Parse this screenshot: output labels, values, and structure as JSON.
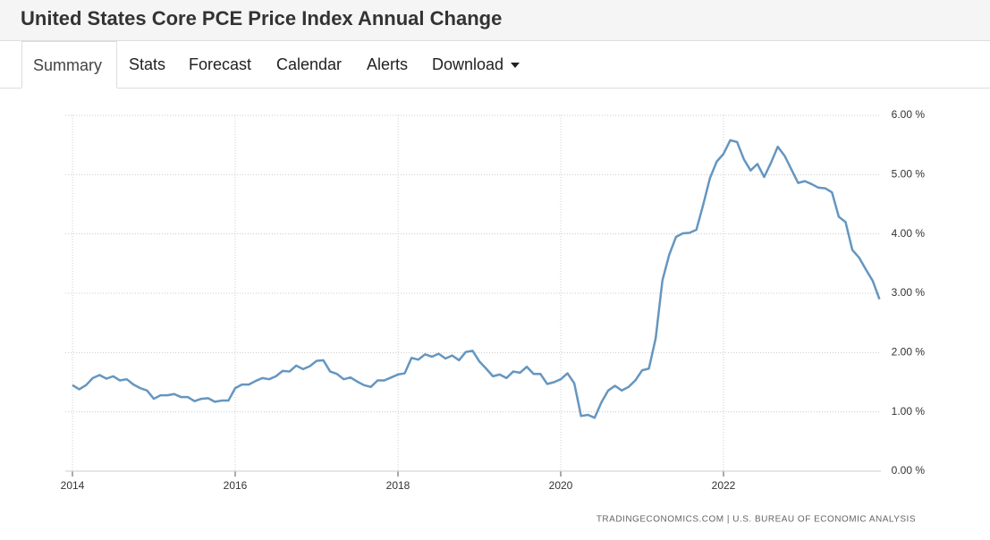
{
  "header": {
    "title": "United States Core PCE Price Index Annual Change"
  },
  "tabs": [
    "Summary",
    "Stats",
    "Forecast",
    "Calendar",
    "Alerts",
    "Download"
  ],
  "chart_data": {
    "type": "line",
    "source": "TRADINGECONOMICS.COM | U.S. BUREAU OF ECONOMIC ANALYSIS",
    "categories": [
      "2014",
      null,
      null,
      null,
      null,
      null,
      null,
      null,
      null,
      null,
      null,
      null,
      null,
      null,
      null,
      null,
      null,
      null,
      null,
      null,
      null,
      null,
      null,
      null,
      "2016",
      null,
      null,
      null,
      null,
      null,
      null,
      null,
      null,
      null,
      null,
      null,
      null,
      null,
      null,
      null,
      null,
      null,
      null,
      null,
      null,
      null,
      null,
      null,
      "2018",
      null,
      null,
      null,
      null,
      null,
      null,
      null,
      null,
      null,
      null,
      null,
      null,
      null,
      null,
      null,
      null,
      null,
      null,
      null,
      null,
      null,
      null,
      null,
      "2020",
      null,
      null,
      null,
      null,
      null,
      null,
      null,
      null,
      null,
      null,
      null,
      null,
      null,
      null,
      null,
      null,
      null,
      null,
      null,
      null,
      null,
      null,
      null,
      "2022",
      null,
      null,
      null,
      null,
      null,
      null,
      null,
      null,
      null,
      null,
      null,
      null,
      null,
      null,
      null,
      null,
      null,
      null,
      null,
      null,
      null,
      null,
      null
    ],
    "series": [
      {
        "name": "Core PCE Price Index Annual Change",
        "color": "#6596c0",
        "values": [
          1.45,
          1.38,
          1.45,
          1.57,
          1.62,
          1.56,
          1.6,
          1.53,
          1.55,
          1.46,
          1.4,
          1.36,
          1.22,
          1.28,
          1.28,
          1.3,
          1.25,
          1.25,
          1.18,
          1.22,
          1.23,
          1.17,
          1.19,
          1.19,
          1.4,
          1.46,
          1.46,
          1.52,
          1.57,
          1.55,
          1.6,
          1.69,
          1.68,
          1.78,
          1.72,
          1.77,
          1.86,
          1.87,
          1.68,
          1.64,
          1.55,
          1.58,
          1.51,
          1.45,
          1.42,
          1.53,
          1.53,
          1.58,
          1.63,
          1.65,
          1.91,
          1.88,
          1.97,
          1.93,
          1.98,
          1.9,
          1.95,
          1.87,
          2.01,
          2.03,
          1.85,
          1.73,
          1.6,
          1.63,
          1.57,
          1.68,
          1.66,
          1.76,
          1.64,
          1.64,
          1.47,
          1.5,
          1.55,
          1.65,
          1.48,
          0.93,
          0.95,
          0.9,
          1.16,
          1.36,
          1.44,
          1.36,
          1.42,
          1.53,
          1.7,
          1.73,
          2.24,
          3.22,
          3.65,
          3.95,
          4.01,
          4.02,
          4.07,
          4.49,
          4.94,
          5.22,
          5.35,
          5.58,
          5.55,
          5.26,
          5.07,
          5.18,
          4.96,
          5.2,
          5.47,
          5.32,
          5.09,
          4.86,
          4.89,
          4.84,
          4.78,
          4.77,
          4.7,
          4.29,
          4.2,
          3.73,
          3.6,
          3.4,
          3.21,
          2.9
        ]
      }
    ],
    "ylim": [
      0,
      6
    ],
    "yticks": [
      {
        "value": 0,
        "label": "0.00 %"
      },
      {
        "value": 1,
        "label": "1.00 %"
      },
      {
        "value": 2,
        "label": "2.00 %"
      },
      {
        "value": 3,
        "label": "3.00 %"
      },
      {
        "value": 4,
        "label": "4.00 %"
      },
      {
        "value": 5,
        "label": "5.00 %"
      },
      {
        "value": 6,
        "label": "6.00 %"
      }
    ],
    "grid": true
  }
}
